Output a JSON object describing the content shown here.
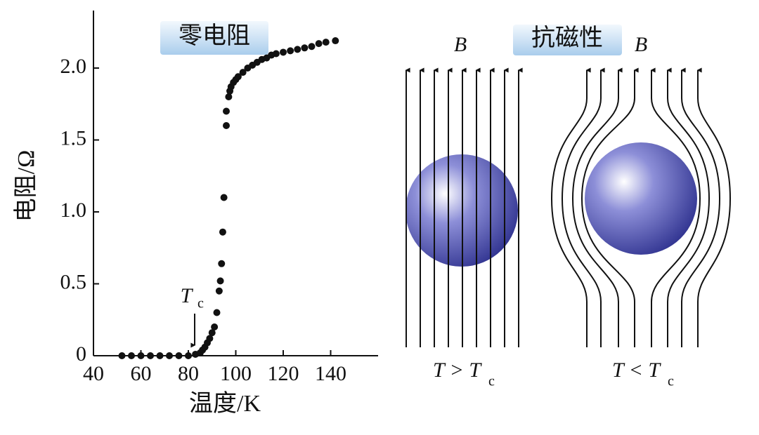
{
  "chart_data": {
    "type": "scatter",
    "title": "零电阻",
    "x_label": "温度/K",
    "y_label": "电阻/Ω",
    "annotation": {
      "text": "T",
      "sub": "c"
    },
    "x": [
      52,
      56,
      60,
      64,
      68,
      72,
      76,
      80,
      83,
      85,
      86,
      87,
      88,
      89,
      90,
      91,
      92,
      93,
      93.5,
      94,
      94.5,
      95,
      96,
      96,
      97,
      97.5,
      98,
      99,
      100,
      101,
      103,
      105,
      107,
      109,
      111,
      113,
      115,
      117,
      120,
      123,
      126,
      129,
      132,
      135,
      138,
      142
    ],
    "values": [
      0,
      0,
      0,
      0,
      0,
      0,
      0,
      0,
      0.01,
      0.02,
      0.04,
      0.06,
      0.09,
      0.12,
      0.16,
      0.2,
      0.3,
      0.45,
      0.52,
      0.64,
      0.86,
      1.1,
      1.6,
      1.7,
      1.8,
      1.84,
      1.87,
      1.9,
      1.92,
      1.94,
      1.97,
      2.0,
      2.02,
      2.04,
      2.06,
      2.07,
      2.09,
      2.1,
      2.11,
      2.12,
      2.13,
      2.14,
      2.15,
      2.17,
      2.18,
      2.19
    ],
    "color": "#111111",
    "xlim": [
      40,
      160
    ],
    "xticks": [
      40,
      60,
      80,
      100,
      120,
      140
    ],
    "ylim": [
      0,
      2.4
    ],
    "yticks": [
      0,
      0.5,
      {
        "value": 1,
        "label": "1.0"
      },
      1.5,
      {
        "value": 2,
        "label": "2.0"
      }
    ]
  },
  "diagram": {
    "title": "抗磁性",
    "panels": [
      {
        "field": "B",
        "caption": "T > T",
        "caption_sub": "c"
      },
      {
        "field": "B",
        "caption": "T < T",
        "caption_sub": "c"
      }
    ]
  }
}
